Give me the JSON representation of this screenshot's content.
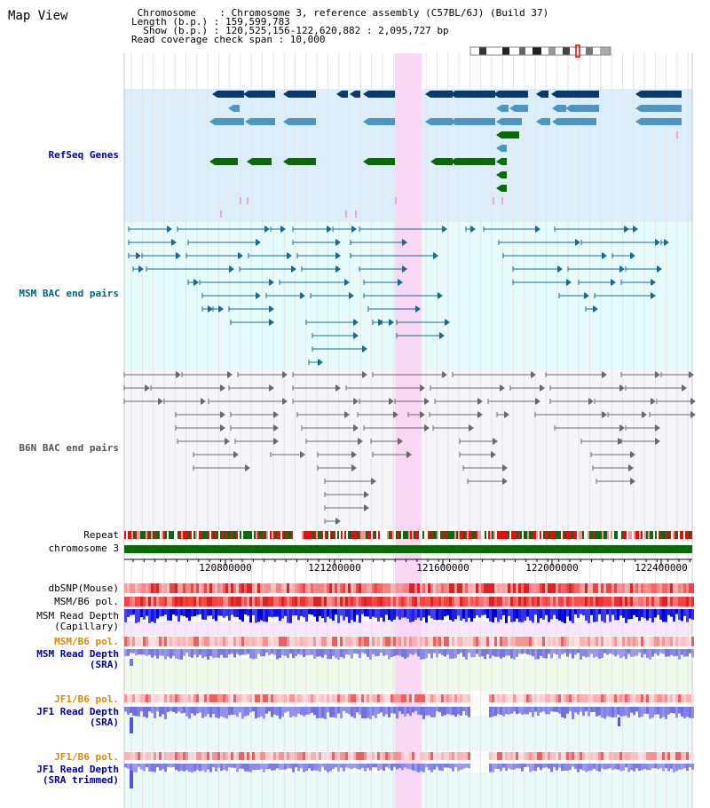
{
  "page_title": "Map View",
  "header": {
    "chromosome_line": " Chromosome    : Chromosome 3, reference assembly (C57BL/6J) (Build 37)",
    "length_line": "Length (b.p.) : 159,599,783",
    "show_line": "  Show (b.p.) : 120,525,156-122,620,882 : 2,095,727 bp",
    "coverage_line": "Read coverage check span : 10,000"
  },
  "tracks": {
    "refseq": "RefSeq Genes",
    "msm_bac": "MSM BAC end pairs",
    "b6n_bac": "B6N BAC end pairs",
    "repeat": "Repeat",
    "chromosome": "chromosome 3",
    "dbsnp": "dbSNP(Mouse)",
    "msm_pol": "MSM/B6 pol.",
    "msm_depth_cap": "MSM Read Depth\n(Capillary)",
    "msm_pol2": "MSM/B6 pol.",
    "msm_depth_sra": "MSM Read Depth\n(SRA)",
    "jf1_pol": "JF1/B6 pol.",
    "jf1_depth_sra": "JF1 Read Depth\n(SRA)",
    "jf1_pol2": "JF1/B6 pol.",
    "jf1_depth_trim": "JF1 Read Depth\n(SRA trimmed)"
  },
  "axis_ticks": [
    "120800000",
    "121200000",
    "121600000",
    "122000000",
    "122400000"
  ],
  "colors": {
    "refseq_bg": "#dceefa",
    "msm_bg": "#e6fcfc",
    "b6n_bg": "#f6f6fa",
    "highlight": "#f8d8f4",
    "gene_dark": "#0a3a6a",
    "gene_mid": "#4a98c0",
    "gene_green": "#0a6a0a",
    "msm_pair": "#1a6a8a",
    "b6n_pair": "#6a6a6a",
    "chrom_green": "#0a6a0a",
    "depth_blue": "#2020ee",
    "depth_light": "#8888ee",
    "snp_red": "#ee4444",
    "label_blue": "#000099",
    "label_teal": "#006677",
    "label_orange": "#dd8800"
  }
}
